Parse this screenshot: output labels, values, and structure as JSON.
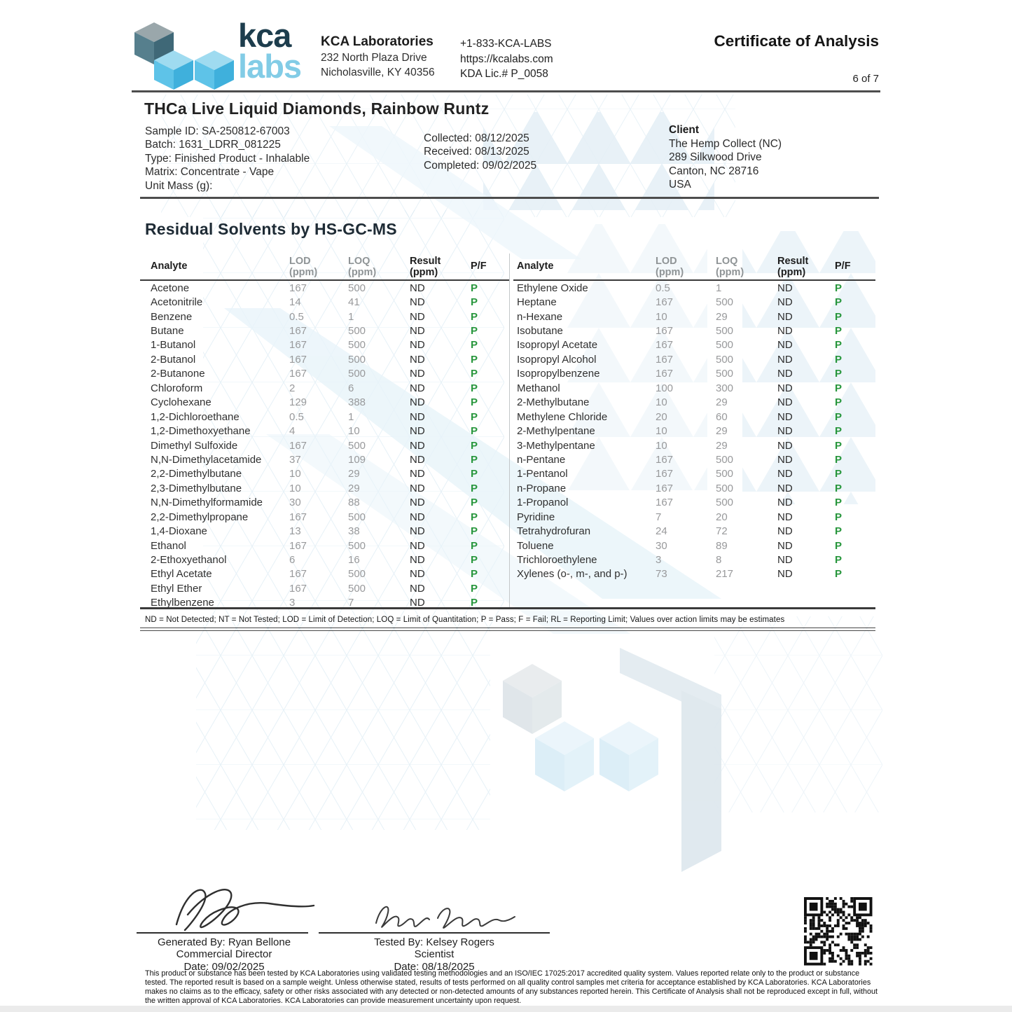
{
  "page": {
    "page_indicator": "6 of 7"
  },
  "header": {
    "brand": {
      "top": "kca",
      "bottom": "labs"
    },
    "lab_name": "KCA Laboratories",
    "lab_address_1": "232 North Plaza Drive",
    "lab_address_2": "Nicholasville, KY 40356",
    "phone": "+1-833-KCA-LABS",
    "website": "https://kcalabs.com",
    "license": "KDA Lic.# P_0058",
    "doc_title": "Certificate of Analysis"
  },
  "sample": {
    "product_title": "THCa Live Liquid Diamonds, Rainbow Runtz",
    "sample_id": "Sample ID: SA-250812-67003",
    "batch": "Batch: 1631_LDRR_081225",
    "type": "Type: Finished Product - Inhalable",
    "matrix": "Matrix: Concentrate - Vape",
    "unit_mass": "Unit Mass (g):",
    "collected": "Collected: 08/12/2025",
    "received": "Received: 08/13/2025",
    "completed": "Completed: 09/02/2025"
  },
  "client": {
    "label": "Client",
    "name": "The Hemp Collect (NC)",
    "address_1": "289 Silkwood Drive",
    "address_2": "Canton, NC 28716",
    "country": "USA"
  },
  "section": {
    "title": "Residual Solvents by HS-GC-MS"
  },
  "table_headers": {
    "analyte": "Analyte",
    "lod": "LOD",
    "loq": "LOQ",
    "result": "Result",
    "unit": "(ppm)",
    "pf": "P/F"
  },
  "left_table_rows": [
    [
      "Acetone",
      "167",
      "500",
      "ND",
      "P"
    ],
    [
      "Acetonitrile",
      "14",
      "41",
      "ND",
      "P"
    ],
    [
      "Benzene",
      "0.5",
      "1",
      "ND",
      "P"
    ],
    [
      "Butane",
      "167",
      "500",
      "ND",
      "P"
    ],
    [
      "1-Butanol",
      "167",
      "500",
      "ND",
      "P"
    ],
    [
      "2-Butanol",
      "167",
      "500",
      "ND",
      "P"
    ],
    [
      "2-Butanone",
      "167",
      "500",
      "ND",
      "P"
    ],
    [
      "Chloroform",
      "2",
      "6",
      "ND",
      "P"
    ],
    [
      "Cyclohexane",
      "129",
      "388",
      "ND",
      "P"
    ],
    [
      "1,2-Dichloroethane",
      "0.5",
      "1",
      "ND",
      "P"
    ],
    [
      "1,2-Dimethoxyethane",
      "4",
      "10",
      "ND",
      "P"
    ],
    [
      "Dimethyl Sulfoxide",
      "167",
      "500",
      "ND",
      "P"
    ],
    [
      "N,N-Dimethylacetamide",
      "37",
      "109",
      "ND",
      "P"
    ],
    [
      "2,2-Dimethylbutane",
      "10",
      "29",
      "ND",
      "P"
    ],
    [
      "2,3-Dimethylbutane",
      "10",
      "29",
      "ND",
      "P"
    ],
    [
      "N,N-Dimethylformamide",
      "30",
      "88",
      "ND",
      "P"
    ],
    [
      "2,2-Dimethylpropane",
      "167",
      "500",
      "ND",
      "P"
    ],
    [
      "1,4-Dioxane",
      "13",
      "38",
      "ND",
      "P"
    ],
    [
      "Ethanol",
      "167",
      "500",
      "ND",
      "P"
    ],
    [
      "2-Ethoxyethanol",
      "6",
      "16",
      "ND",
      "P"
    ],
    [
      "Ethyl Acetate",
      "167",
      "500",
      "ND",
      "P"
    ],
    [
      "Ethyl Ether",
      "167",
      "500",
      "ND",
      "P"
    ],
    [
      "Ethylbenzene",
      "3",
      "7",
      "ND",
      "P"
    ]
  ],
  "right_table_rows": [
    [
      "Ethylene Oxide",
      "0.5",
      "1",
      "ND",
      "P"
    ],
    [
      "Heptane",
      "167",
      "500",
      "ND",
      "P"
    ],
    [
      "n-Hexane",
      "10",
      "29",
      "ND",
      "P"
    ],
    [
      "Isobutane",
      "167",
      "500",
      "ND",
      "P"
    ],
    [
      "Isopropyl Acetate",
      "167",
      "500",
      "ND",
      "P"
    ],
    [
      "Isopropyl Alcohol",
      "167",
      "500",
      "ND",
      "P"
    ],
    [
      "Isopropylbenzene",
      "167",
      "500",
      "ND",
      "P"
    ],
    [
      "Methanol",
      "100",
      "300",
      "ND",
      "P"
    ],
    [
      "2-Methylbutane",
      "10",
      "29",
      "ND",
      "P"
    ],
    [
      "Methylene Chloride",
      "20",
      "60",
      "ND",
      "P"
    ],
    [
      "2-Methylpentane",
      "10",
      "29",
      "ND",
      "P"
    ],
    [
      "3-Methylpentane",
      "10",
      "29",
      "ND",
      "P"
    ],
    [
      "n-Pentane",
      "167",
      "500",
      "ND",
      "P"
    ],
    [
      "1-Pentanol",
      "167",
      "500",
      "ND",
      "P"
    ],
    [
      "n-Propane",
      "167",
      "500",
      "ND",
      "P"
    ],
    [
      "1-Propanol",
      "167",
      "500",
      "ND",
      "P"
    ],
    [
      "Pyridine",
      "7",
      "20",
      "ND",
      "P"
    ],
    [
      "Tetrahydrofuran",
      "24",
      "72",
      "ND",
      "P"
    ],
    [
      "Toluene",
      "30",
      "89",
      "ND",
      "P"
    ],
    [
      "Trichloroethylene",
      "3",
      "8",
      "ND",
      "P"
    ],
    [
      "Xylenes (o-, m-, and p-)",
      "73",
      "217",
      "ND",
      "P"
    ]
  ],
  "footnote": "ND = Not Detected; NT = Not Tested; LOD = Limit of Detection; LOQ = Limit of Quantitation; P = Pass; F = Fail; RL = Reporting Limit; Values over action limits may be estimates",
  "signatures": {
    "generated_by": "Generated By: Ryan Bellone",
    "generated_title": "Commercial Director",
    "generated_date": "Date: 09/02/2025",
    "tested_by": "Tested By: Kelsey Rogers",
    "tested_title": "Scientist",
    "tested_date": "Date: 08/18/2025"
  },
  "disclaimer": "This product or substance has been tested by KCA Laboratories using validated testing methodologies and an ISO/IEC 17025:2017 accredited quality system. Values reported relate only to the product or substance tested. The reported result is based on a sample weight. Unless otherwise stated, results of tests performed on all quality control samples met criteria for acceptance established by KCA Laboratories. KCA Laboratories makes no claims as to the efficacy, safety or other risks associated with any detected or non-detected amounts of any substances reported herein. This Certificate of Analysis shall not be reproduced except in full, without the written approval of KCA Laboratories. KCA Laboratories can provide measurement uncertainty upon request.",
  "colors": {
    "brand_navy": "#1d3d4d",
    "brand_light_blue": "#82cce6",
    "pass_green": "#27963c",
    "muted_gray": "#98999b"
  }
}
